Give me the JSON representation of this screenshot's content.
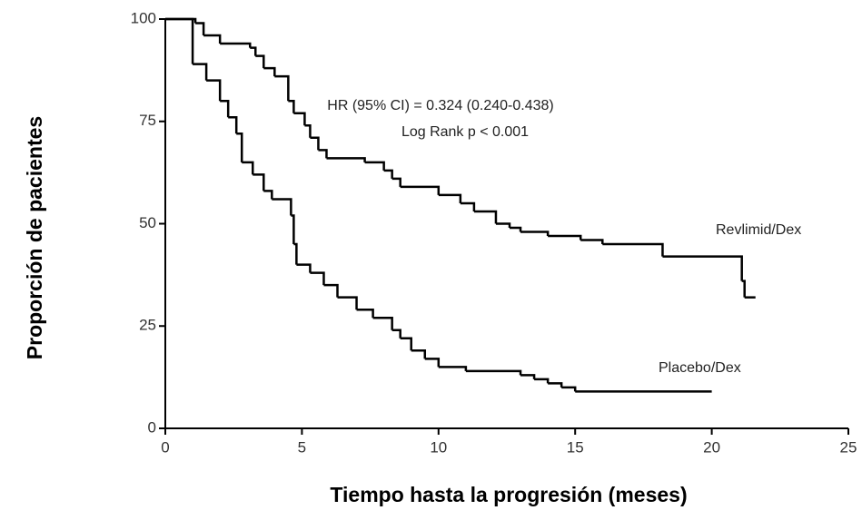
{
  "chart_data": {
    "type": "line",
    "step": true,
    "x_label": "Tiempo hasta la progresión (meses)",
    "y_label": "Proporción de pacientes",
    "annotations": [
      "HR (95% CI) = 0.324 (0.240-0.438)",
      "Log Rank p < 0.001"
    ],
    "xlim": [
      0,
      25
    ],
    "xticks": [
      0,
      5,
      10,
      15,
      20,
      25
    ],
    "ylim": [
      0,
      100
    ],
    "yticks": [
      0,
      25,
      50,
      75,
      100
    ],
    "series": [
      {
        "name": "Revlimid/Dex",
        "color": "#000000",
        "x": [
          0,
          1.1,
          1.4,
          2,
          3.1,
          3.3,
          3.6,
          4,
          4.5,
          4.7,
          5.1,
          5.3,
          5.6,
          5.9,
          7.3,
          8,
          8.3,
          8.6,
          10,
          10.8,
          11.3,
          12.1,
          12.6,
          13,
          14,
          15.2,
          16,
          18.2,
          21.1,
          21.2,
          21.6
        ],
        "values": [
          100,
          99,
          96,
          94,
          93,
          91,
          88,
          86,
          80,
          77,
          74,
          71,
          68,
          66,
          65,
          63,
          61,
          59,
          57,
          55,
          53,
          50,
          49,
          48,
          47,
          46,
          45,
          42,
          36,
          32,
          32
        ]
      },
      {
        "name": "Placebo/Dex",
        "color": "#000000",
        "x": [
          0,
          1,
          1.5,
          2,
          2.3,
          2.6,
          2.8,
          3.2,
          3.6,
          3.9,
          4.6,
          4.7,
          4.8,
          5.3,
          5.8,
          6.3,
          7,
          7.6,
          8.3,
          8.6,
          9,
          9.5,
          10,
          11,
          13,
          13.5,
          14,
          14.5,
          15,
          20
        ],
        "values": [
          100,
          89,
          85,
          80,
          76,
          72,
          65,
          62,
          58,
          56,
          52,
          45,
          40,
          38,
          35,
          32,
          29,
          27,
          24,
          22,
          19,
          17,
          15,
          14,
          13,
          12,
          11,
          10,
          9,
          9
        ]
      }
    ]
  }
}
